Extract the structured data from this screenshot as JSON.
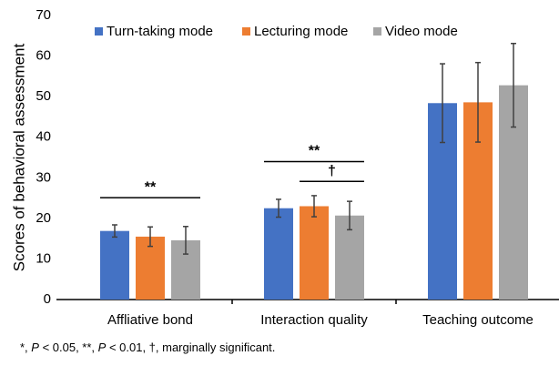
{
  "chart_data": {
    "type": "bar",
    "y_label": "Scores of behavioral assessment",
    "categories": [
      "Affliative bond",
      "Interaction quality",
      "Teaching outcome"
    ],
    "series": [
      {
        "name": "Turn-taking mode",
        "color": "#4472c4",
        "values": [
          16.9,
          22.5,
          48.4
        ],
        "errors": [
          1.5,
          2.2,
          9.7
        ]
      },
      {
        "name": "Lecturing mode",
        "color": "#ed7d31",
        "values": [
          15.5,
          23.0,
          48.6
        ],
        "errors": [
          2.4,
          2.6,
          9.8
        ]
      },
      {
        "name": "Video mode",
        "color": "#a5a5a5",
        "values": [
          14.6,
          20.7,
          52.8
        ],
        "errors": [
          3.4,
          3.5,
          10.3
        ]
      }
    ],
    "ylim": [
      0,
      70
    ],
    "yticks": [
      0,
      10,
      20,
      30,
      40,
      50,
      60,
      70
    ],
    "legend": "top",
    "annotations": [
      {
        "label": "**",
        "y": 25.1,
        "group": 0,
        "series_from": 0,
        "series_to": 2
      },
      {
        "label": "**",
        "y": 34.0,
        "group": 1,
        "series_from": 0,
        "series_to": 2
      },
      {
        "label": "†",
        "y": 29.1,
        "group": 1,
        "series_from": 1,
        "series_to": 2
      }
    ],
    "footnote": [
      "*, ",
      "P",
      " < 0.05, **, ",
      "P",
      " < 0.01, †, marginally significant."
    ]
  }
}
